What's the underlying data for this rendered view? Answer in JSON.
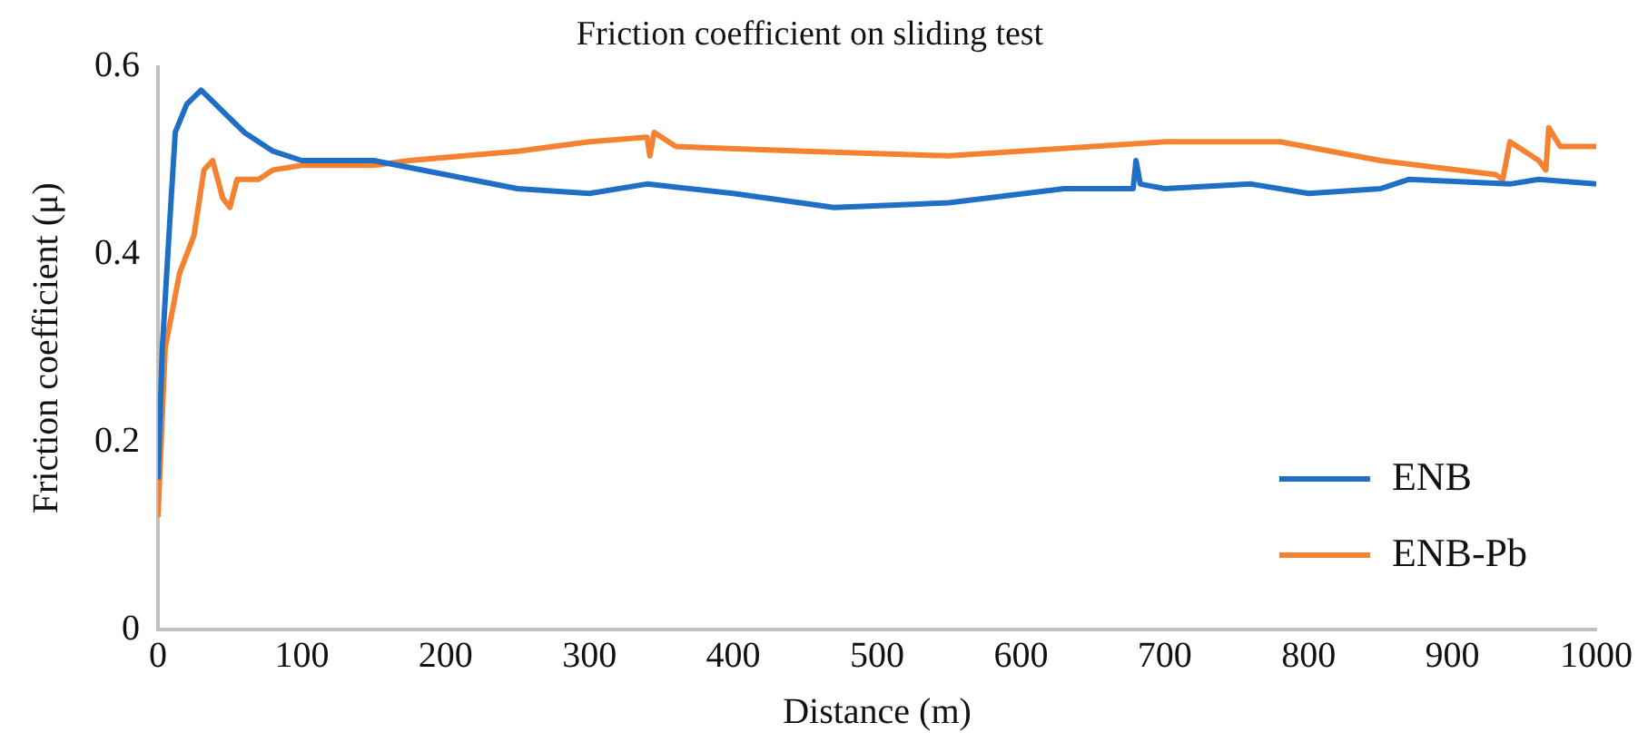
{
  "chart_data": {
    "type": "line",
    "title": "Friction coefficient on sliding test",
    "xlabel": "Distance (m)",
    "ylabel": "Friction coefficient (μ)",
    "xlim": [
      0,
      1000
    ],
    "xticks": [
      0,
      100,
      200,
      300,
      400,
      500,
      600,
      700,
      800,
      900,
      1000
    ],
    "ylim": [
      0,
      0.6
    ],
    "yticks": [
      0,
      0.2,
      0.4,
      0.6
    ],
    "grid": false,
    "legend": "bottom right",
    "marker": "none",
    "line_style": "solid",
    "series": [
      {
        "name": "ENB",
        "color": "#1f6fc6",
        "x": [
          0,
          3,
          8,
          12,
          20,
          30,
          40,
          60,
          80,
          100,
          150,
          200,
          250,
          300,
          340,
          400,
          470,
          550,
          630,
          678,
          680,
          683,
          700,
          760,
          800,
          850,
          870,
          940,
          960,
          1000
        ],
        "values": [
          0.16,
          0.3,
          0.43,
          0.53,
          0.56,
          0.575,
          0.56,
          0.53,
          0.51,
          0.5,
          0.5,
          0.485,
          0.47,
          0.465,
          0.475,
          0.465,
          0.45,
          0.455,
          0.47,
          0.47,
          0.5,
          0.475,
          0.47,
          0.475,
          0.465,
          0.47,
          0.48,
          0.475,
          0.48,
          0.475
        ]
      },
      {
        "name": "ENB-Pb",
        "color": "#f58230",
        "x": [
          0,
          5,
          15,
          25,
          32,
          38,
          45,
          50,
          55,
          70,
          80,
          100,
          150,
          175,
          250,
          300,
          340,
          342,
          345,
          360,
          450,
          550,
          650,
          700,
          780,
          850,
          930,
          935,
          940,
          960,
          965,
          967,
          975,
          1000
        ],
        "values": [
          0.12,
          0.3,
          0.38,
          0.42,
          0.49,
          0.5,
          0.46,
          0.45,
          0.48,
          0.48,
          0.49,
          0.495,
          0.495,
          0.5,
          0.51,
          0.52,
          0.525,
          0.505,
          0.53,
          0.515,
          0.51,
          0.505,
          0.515,
          0.52,
          0.52,
          0.5,
          0.485,
          0.48,
          0.52,
          0.5,
          0.49,
          0.535,
          0.515,
          0.515
        ]
      }
    ]
  }
}
